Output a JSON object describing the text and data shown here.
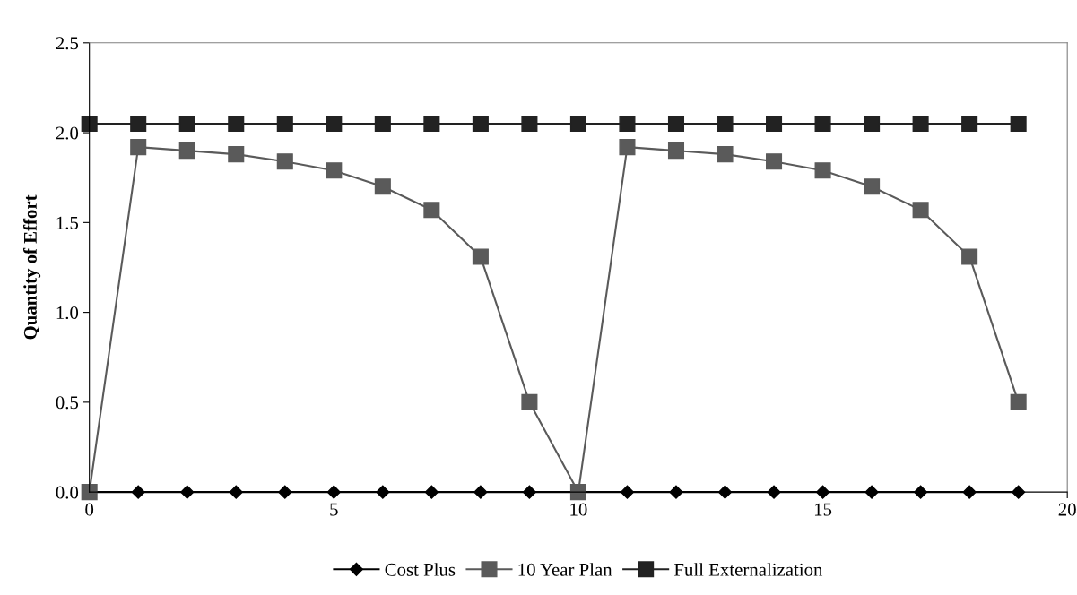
{
  "chart_data": {
    "type": "line",
    "ylabel": "Quantity of Effort",
    "x": [
      0,
      1,
      2,
      3,
      4,
      5,
      6,
      7,
      8,
      9,
      10,
      11,
      12,
      13,
      14,
      15,
      16,
      17,
      18,
      19
    ],
    "xlim": [
      0,
      20
    ],
    "xticks": [
      0,
      5,
      10,
      15,
      20
    ],
    "ylim": [
      0,
      2.5
    ],
    "yticks": [
      {
        "value": 0,
        "label": "0.0"
      },
      {
        "value": 0.5,
        "label": "0.5"
      },
      {
        "value": 1.0,
        "label": "1.0"
      },
      {
        "value": 1.5,
        "label": "1.5"
      },
      {
        "value": 2.0,
        "label": "2.0"
      },
      {
        "value": 2.5,
        "label": "2.5"
      }
    ],
    "grid": false,
    "legend": "bottom",
    "line_style": "solid",
    "series": [
      {
        "name": "Cost Plus",
        "color": "#000000",
        "marker": "diamond",
        "values": [
          0,
          0,
          0,
          0,
          0,
          0,
          0,
          0,
          0,
          0,
          0,
          0,
          0,
          0,
          0,
          0,
          0,
          0,
          0,
          0
        ]
      },
      {
        "name": "10 Year Plan",
        "color": "#5a5a5a",
        "marker": "square",
        "values": [
          0,
          1.92,
          1.9,
          1.88,
          1.84,
          1.79,
          1.7,
          1.57,
          1.31,
          0.5,
          0,
          1.92,
          1.9,
          1.88,
          1.84,
          1.79,
          1.7,
          1.57,
          1.31,
          0.5
        ]
      },
      {
        "name": "Full Externalization",
        "color": "#222222",
        "marker": "square",
        "values": [
          2.05,
          2.05,
          2.05,
          2.05,
          2.05,
          2.05,
          2.05,
          2.05,
          2.05,
          2.05,
          2.05,
          2.05,
          2.05,
          2.05,
          2.05,
          2.05,
          2.05,
          2.05,
          2.05,
          2.05
        ]
      }
    ]
  }
}
